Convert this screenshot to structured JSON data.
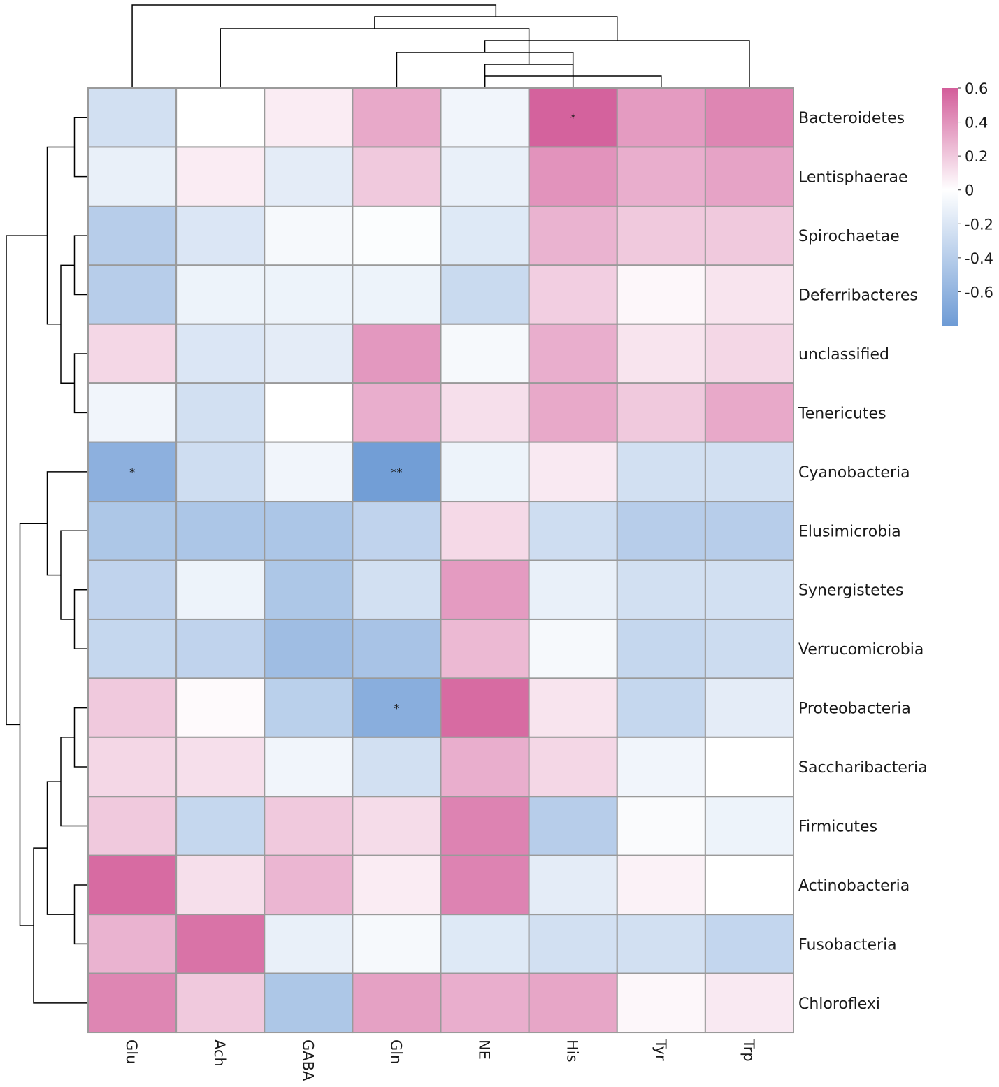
{
  "chart_data": {
    "type": "heatmap",
    "title": "",
    "rows": [
      "Bacteroidetes",
      "Lentisphaerae",
      "Spirochaetae",
      "Deferribacteres",
      "unclassified",
      "Tenericutes",
      "Cyanobacteria",
      "Elusimicrobia",
      "Synergistetes",
      "Verrucomicrobia",
      "Proteobacteria",
      "Saccharibacteria",
      "Firmicutes",
      "Actinobacteria",
      "Fusobacteria",
      "Chloroflexi"
    ],
    "columns": [
      "Glu",
      "Ach",
      "GABA",
      "Gln",
      "NE",
      "His",
      "Tyr",
      "Trp"
    ],
    "values": [
      [
        -0.25,
        0.0,
        0.07,
        0.32,
        -0.08,
        0.58,
        0.37,
        0.45
      ],
      [
        -0.12,
        0.07,
        -0.15,
        0.2,
        -0.12,
        0.4,
        0.3,
        0.34
      ],
      [
        -0.4,
        -0.2,
        -0.05,
        -0.02,
        -0.18,
        0.28,
        0.2,
        0.2
      ],
      [
        -0.4,
        -0.1,
        -0.1,
        -0.1,
        -0.3,
        0.18,
        0.03,
        0.1
      ],
      [
        0.15,
        -0.2,
        -0.15,
        0.38,
        -0.05,
        0.3,
        0.1,
        0.15
      ],
      [
        -0.08,
        -0.25,
        0.0,
        0.3,
        0.12,
        0.32,
        0.2,
        0.32
      ],
      [
        -0.63,
        -0.27,
        -0.08,
        -0.78,
        -0.1,
        0.08,
        -0.25,
        -0.25
      ],
      [
        -0.45,
        -0.46,
        -0.46,
        -0.35,
        0.14,
        -0.27,
        -0.4,
        -0.4
      ],
      [
        -0.35,
        -0.1,
        -0.45,
        -0.25,
        0.37,
        -0.12,
        -0.25,
        -0.25
      ],
      [
        -0.32,
        -0.35,
        -0.53,
        -0.48,
        0.26,
        -0.05,
        -0.32,
        -0.28
      ],
      [
        0.2,
        0.02,
        -0.38,
        -0.65,
        0.55,
        0.1,
        -0.32,
        -0.15
      ],
      [
        0.15,
        0.12,
        -0.08,
        -0.25,
        0.3,
        0.15,
        -0.08,
        0.0
      ],
      [
        0.2,
        -0.32,
        0.2,
        0.13,
        0.46,
        -0.4,
        -0.03,
        -0.1
      ],
      [
        0.55,
        0.12,
        0.27,
        0.07,
        0.46,
        -0.15,
        0.05,
        0.0
      ],
      [
        0.28,
        0.52,
        -0.12,
        -0.05,
        -0.18,
        -0.25,
        -0.25,
        -0.33
      ],
      [
        0.45,
        0.2,
        -0.45,
        0.35,
        0.3,
        0.33,
        0.03,
        0.08
      ]
    ],
    "significance": [
      {
        "row": "Bacteroidetes",
        "column": "His",
        "mark": "*"
      },
      {
        "row": "Cyanobacteria",
        "column": "Glu",
        "mark": "*"
      },
      {
        "row": "Cyanobacteria",
        "column": "Gln",
        "mark": "**"
      },
      {
        "row": "Proteobacteria",
        "column": "Gln",
        "mark": "*"
      }
    ],
    "colorbar": {
      "range": [
        -0.8,
        0.6
      ],
      "ticks": [
        0.6,
        0.4,
        0.2,
        0,
        -0.2,
        -0.4,
        -0.6
      ],
      "tick_labels": [
        "0.6",
        "0.4",
        "0.2",
        "0",
        "-0.2",
        "-0.4",
        "-0.6"
      ],
      "low_color": "#6e9bd5",
      "mid_color": "#ffffff",
      "high_color": "#d35d9a"
    },
    "col_dendrogram": [
      [
        4,
        6,
        1
      ],
      [
        4,
        5,
        2
      ],
      [
        3,
        8,
        3
      ],
      [
        10,
        7,
        4
      ],
      [
        1,
        9,
        5
      ],
      [
        11,
        12,
        6
      ],
      [
        0,
        13,
        7
      ]
    ],
    "row_dendrogram": [
      [
        0,
        1,
        1
      ],
      [
        2,
        3,
        1
      ],
      [
        4,
        5,
        1
      ],
      [
        17,
        18,
        2
      ],
      [
        16,
        19,
        3
      ],
      [
        8,
        9,
        1
      ],
      [
        7,
        21,
        2
      ],
      [
        6,
        22,
        3
      ],
      [
        10,
        11,
        1
      ],
      [
        12,
        24,
        2
      ],
      [
        13,
        14,
        1
      ],
      [
        25,
        26,
        3
      ],
      [
        15,
        27,
        4
      ],
      [
        23,
        28,
        5
      ],
      [
        20,
        29,
        6
      ]
    ]
  }
}
